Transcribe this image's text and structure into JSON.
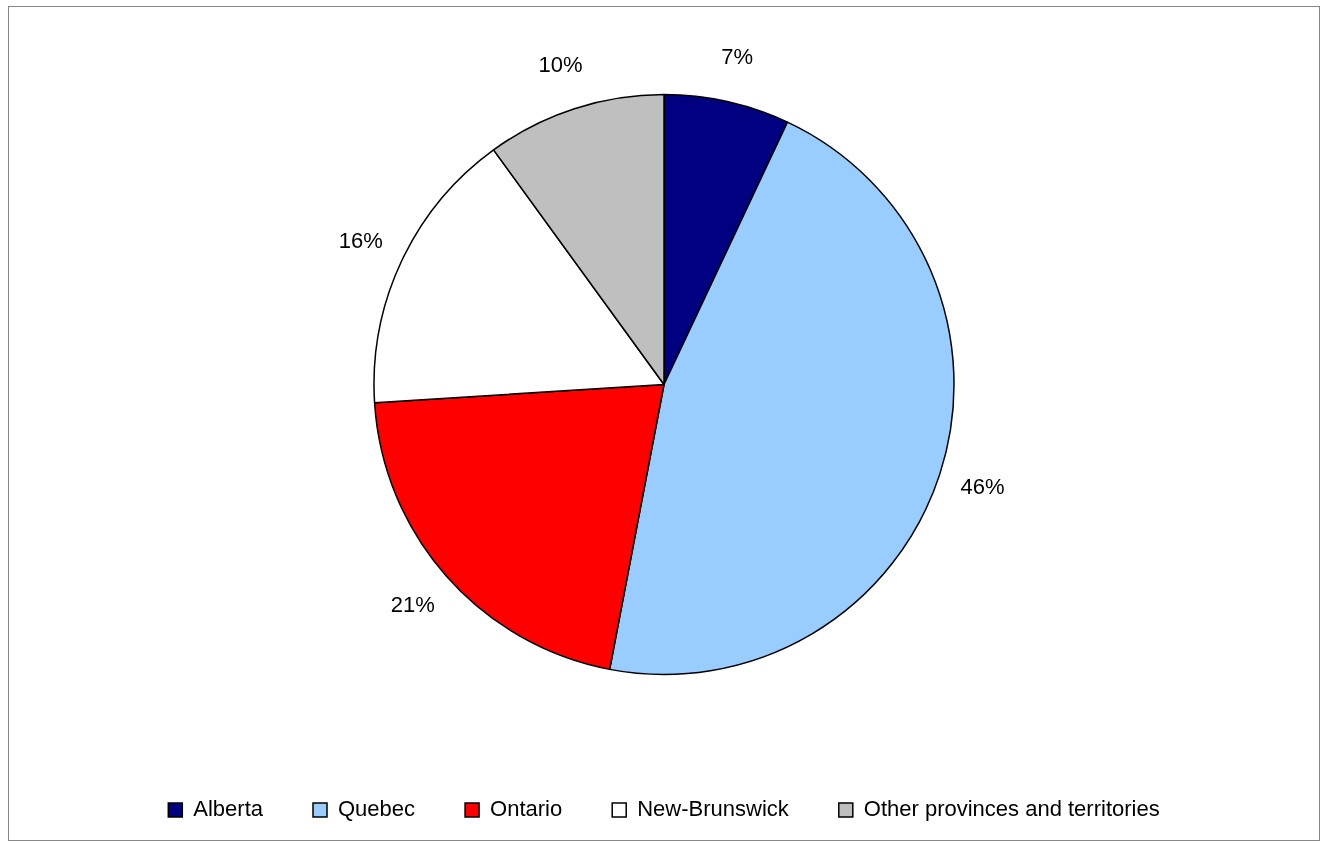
{
  "chart_data": {
    "type": "pie",
    "categories": [
      "Alberta",
      "Quebec",
      "Ontario",
      "New-Brunswick",
      "Other provinces and territories"
    ],
    "values": [
      7,
      46,
      21,
      16,
      10
    ],
    "colors": [
      "#000080",
      "#99ccff",
      "#ff0000",
      "#ffffff",
      "#bfbfbf"
    ],
    "value_labels": [
      "7%",
      "46%",
      "21%",
      "16%",
      "10%"
    ],
    "legend": "bottom"
  }
}
